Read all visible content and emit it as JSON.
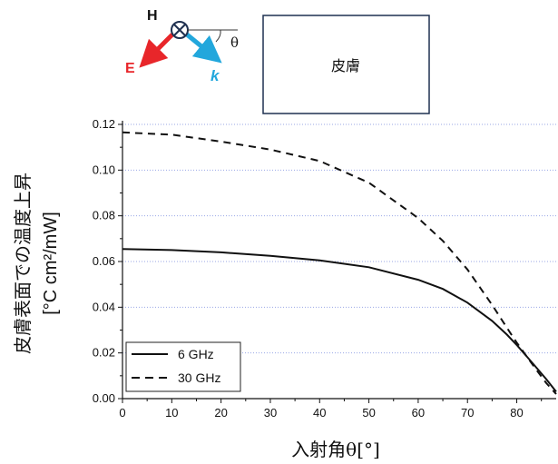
{
  "diagram": {
    "h_label": "H",
    "e_label": "E",
    "k_label": "k",
    "theta_label": "θ",
    "skin_label": "皮膚",
    "colors": {
      "e_arrow": "#e8262a",
      "k_arrow": "#22a7dc",
      "h_symbol": "#1f3050"
    }
  },
  "chart_data": {
    "type": "line",
    "xlabel": "入射角θ[°]",
    "ylabel": [
      "皮膚表面での温度上昇",
      "[°C cm²/mW]"
    ],
    "xlim": [
      0,
      88
    ],
    "ylim": [
      0,
      0.12
    ],
    "x_ticks": [
      "0",
      "10",
      "20",
      "30",
      "40",
      "50",
      "60",
      "70",
      "80"
    ],
    "y_ticks": [
      "0.00",
      "0.02",
      "0.04",
      "0.06",
      "0.08",
      "0.10",
      "0.12"
    ],
    "grid": "horizontal dotted",
    "legend_position": "bottom-left",
    "series": [
      {
        "name": "6 GHz",
        "style": "solid",
        "x": [
          0,
          10,
          20,
          30,
          40,
          50,
          60,
          65,
          70,
          75,
          78,
          80,
          82,
          84,
          86,
          88
        ],
        "y": [
          0.0655,
          0.065,
          0.064,
          0.0625,
          0.0605,
          0.0575,
          0.052,
          0.048,
          0.042,
          0.034,
          0.028,
          0.0235,
          0.0185,
          0.0135,
          0.0085,
          0.003
        ]
      },
      {
        "name": "30 GHz",
        "style": "dashed",
        "x": [
          0,
          10,
          20,
          30,
          40,
          50,
          60,
          65,
          70,
          75,
          78,
          80,
          82,
          84,
          86,
          88
        ],
        "y": [
          0.1165,
          0.1155,
          0.1125,
          0.109,
          0.104,
          0.0945,
          0.079,
          0.069,
          0.0565,
          0.041,
          0.031,
          0.0245,
          0.0185,
          0.0125,
          0.0068,
          0.002
        ]
      }
    ]
  }
}
